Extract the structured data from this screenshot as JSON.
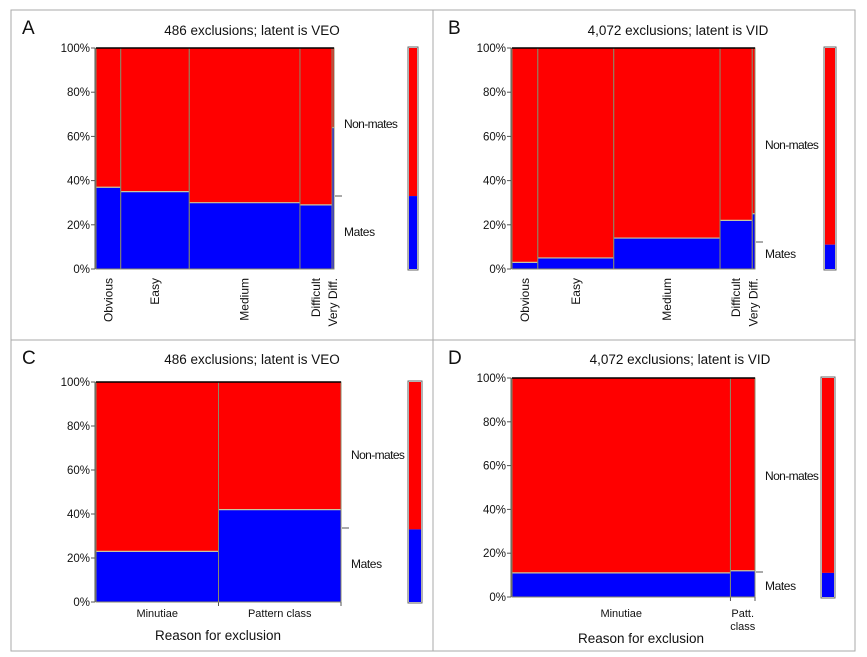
{
  "colors": {
    "mates": "#0000ff",
    "non_mates": "#ff0000",
    "divider": "#c8c8a0"
  },
  "y_ticks": [
    "0%",
    "20%",
    "40%",
    "60%",
    "80%",
    "100%"
  ],
  "chart_data": [
    {
      "panel": "A",
      "type": "mosaic",
      "title": "486 exclusions; latent is VEO",
      "xlabel": "",
      "categories": [
        "Obvious",
        "Easy",
        "Medium",
        "Difficult",
        "Very Diff."
      ],
      "widths": [
        0.104,
        0.288,
        0.465,
        0.135,
        0.008
      ],
      "series": [
        {
          "name": "Mates",
          "values": [
            37,
            35,
            30,
            29,
            64
          ]
        },
        {
          "name": "Non-mates",
          "values": [
            63,
            65,
            70,
            71,
            36
          ]
        }
      ],
      "overall_mates": 33,
      "ylim": [
        0,
        100
      ]
    },
    {
      "panel": "B",
      "type": "mosaic",
      "title": "4,072 exclusions; latent is VID",
      "xlabel": "",
      "categories": [
        "Obvious",
        "Easy",
        "Medium",
        "Difficult",
        "Very Diff."
      ],
      "widths": [
        0.085,
        0.25,
        0.35,
        0.106,
        0.009
      ],
      "series": [
        {
          "name": "Mates",
          "values": [
            3,
            5,
            14,
            22,
            25
          ]
        },
        {
          "name": "Non-mates",
          "values": [
            97,
            95,
            86,
            78,
            75
          ]
        }
      ],
      "overall_mates": 11,
      "ylim": [
        0,
        100
      ]
    },
    {
      "panel": "C",
      "type": "mosaic",
      "title": "486 exclusions; latent is VEO",
      "xlabel": "Reason for exclusion",
      "categories": [
        "Minutiae",
        "Pattern class"
      ],
      "widths": [
        0.5,
        0.5
      ],
      "series": [
        {
          "name": "Mates",
          "values": [
            23,
            42
          ]
        },
        {
          "name": "Non-mates",
          "values": [
            77,
            58
          ]
        }
      ],
      "overall_mates": 33,
      "ylim": [
        0,
        100
      ]
    },
    {
      "panel": "D",
      "type": "mosaic",
      "title": "4,072 exclusions; latent is VID",
      "xlabel": "Reason for exclusion",
      "categories": [
        "Minutiae",
        "Patt. class"
      ],
      "widths": [
        0.899,
        0.101
      ],
      "series": [
        {
          "name": "Mates",
          "values": [
            11,
            12
          ]
        },
        {
          "name": "Non-mates",
          "values": [
            89,
            88
          ]
        }
      ],
      "overall_mates": 11,
      "ylim": [
        0,
        100
      ]
    }
  ]
}
